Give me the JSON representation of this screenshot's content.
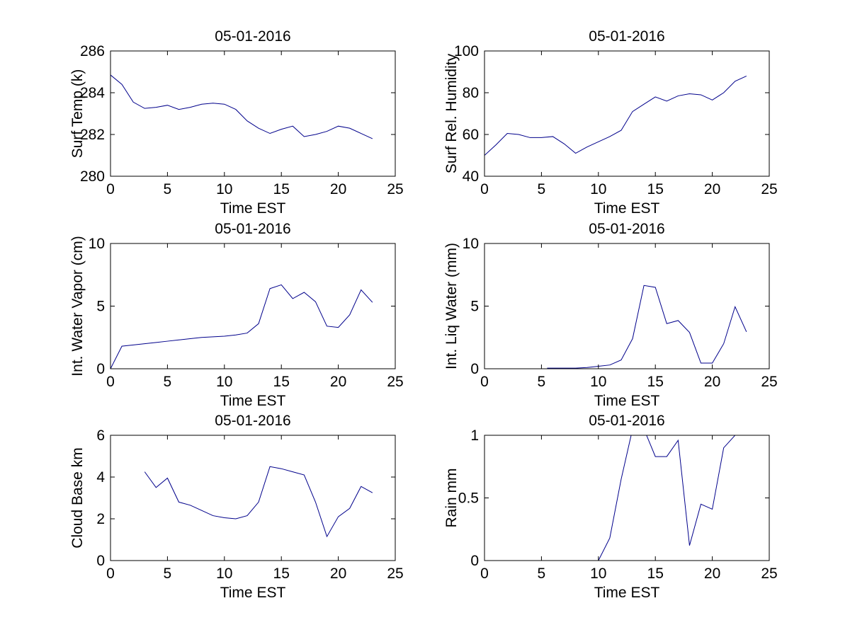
{
  "figure": {
    "background": "#ffffff",
    "axes_color": "#000000",
    "line_color": "#00008B"
  },
  "chart_data": [
    {
      "id": "surf-temp",
      "type": "line",
      "title": "05-01-2016",
      "xlabel": "Time EST",
      "ylabel": "Surf Temp (k)",
      "xlim": [
        0,
        25
      ],
      "ylim": [
        280,
        286
      ],
      "xticks": [
        0,
        5,
        10,
        15,
        20,
        25
      ],
      "yticks": [
        280,
        282,
        284,
        286
      ],
      "grid": false,
      "legend": null,
      "line_color": "#00008B",
      "x": [
        0,
        1,
        2,
        3,
        4,
        5,
        6,
        7,
        8,
        9,
        10,
        11,
        12,
        13,
        14,
        15,
        16,
        17,
        18,
        19,
        20,
        21,
        22,
        23
      ],
      "y": [
        284.85,
        284.4,
        283.55,
        283.25,
        283.3,
        283.4,
        283.2,
        283.3,
        283.45,
        283.5,
        283.45,
        283.2,
        282.65,
        282.3,
        282.05,
        282.25,
        282.4,
        281.9,
        282.0,
        282.15,
        282.4,
        282.3,
        282.05,
        281.8
      ]
    },
    {
      "id": "surf-rel-humidity",
      "type": "line",
      "title": "05-01-2016",
      "xlabel": "Time EST",
      "ylabel": "Surf Rel. Humidity",
      "xlim": [
        0,
        25
      ],
      "ylim": [
        40,
        100
      ],
      "xticks": [
        0,
        5,
        10,
        15,
        20,
        25
      ],
      "yticks": [
        40,
        60,
        80,
        100
      ],
      "grid": false,
      "legend": null,
      "line_color": "#00008B",
      "x": [
        0,
        1,
        2,
        3,
        4,
        5,
        6,
        7,
        8,
        9,
        10,
        11,
        12,
        13,
        14,
        15,
        16,
        17,
        18,
        19,
        20,
        21,
        22,
        23
      ],
      "y": [
        50,
        55,
        60.5,
        60,
        58.5,
        58.5,
        59,
        55.5,
        51,
        54,
        56.5,
        59,
        62,
        71,
        74.5,
        78,
        76,
        78.5,
        79.5,
        79,
        76.5,
        80,
        85.5,
        88
      ]
    },
    {
      "id": "int-water-vapor",
      "type": "line",
      "title": "05-01-2016",
      "xlabel": "Time EST",
      "ylabel": "Int. Water Vapor (cm)",
      "xlim": [
        0,
        25
      ],
      "ylim": [
        0,
        10
      ],
      "xticks": [
        0,
        5,
        10,
        15,
        20,
        25
      ],
      "yticks": [
        0,
        5,
        10
      ],
      "grid": false,
      "legend": null,
      "line_color": "#00008B",
      "x": [
        0,
        1,
        2,
        3,
        4,
        5,
        6,
        7,
        8,
        9,
        10,
        11,
        12,
        13,
        14,
        15,
        16,
        17,
        18,
        19,
        20,
        21,
        22,
        23
      ],
      "y": [
        0,
        1.8,
        1.9,
        2.0,
        2.1,
        2.2,
        2.3,
        2.4,
        2.5,
        2.55,
        2.6,
        2.7,
        2.85,
        3.6,
        6.4,
        6.7,
        5.6,
        6.1,
        5.35,
        3.4,
        3.3,
        4.3,
        6.3,
        5.3
      ]
    },
    {
      "id": "int-liq-water",
      "type": "line",
      "title": "05-01-2016",
      "xlabel": "Time EST",
      "ylabel": "Int. Liq Water (mm)",
      "xlim": [
        0,
        25
      ],
      "ylim": [
        0,
        10
      ],
      "xticks": [
        0,
        5,
        10,
        15,
        20,
        25
      ],
      "yticks": [
        0,
        5,
        10
      ],
      "grid": false,
      "legend": null,
      "line_color": "#00008B",
      "x": [
        5.5,
        6,
        7,
        8,
        9,
        10,
        11,
        12,
        13,
        14,
        15,
        16,
        17,
        18,
        19,
        20,
        21,
        22,
        23
      ],
      "y": [
        0.05,
        0.05,
        0.05,
        0.05,
        0.1,
        0.2,
        0.3,
        0.7,
        2.4,
        6.65,
        6.5,
        3.6,
        3.85,
        2.9,
        0.45,
        0.45,
        2.0,
        4.95,
        2.95
      ]
    },
    {
      "id": "cloud-base",
      "type": "line",
      "title": "05-01-2016",
      "xlabel": "Time EST",
      "ylabel": "Cloud Base km",
      "xlim": [
        0,
        25
      ],
      "ylim": [
        0,
        6
      ],
      "xticks": [
        0,
        5,
        10,
        15,
        20,
        25
      ],
      "yticks": [
        0,
        2,
        4,
        6
      ],
      "grid": false,
      "legend": null,
      "line_color": "#00008B",
      "x": [
        3,
        4,
        5,
        6,
        7,
        8,
        9,
        10,
        11,
        12,
        13,
        14,
        15,
        16,
        17,
        18,
        19,
        20,
        21,
        22,
        23
      ],
      "y": [
        4.25,
        3.5,
        3.95,
        2.8,
        2.65,
        2.4,
        2.15,
        2.05,
        2.0,
        2.15,
        2.8,
        4.5,
        4.4,
        4.25,
        4.1,
        2.8,
        1.15,
        2.1,
        2.5,
        3.55,
        3.25
      ]
    },
    {
      "id": "rain",
      "type": "line",
      "title": "05-01-2016",
      "xlabel": "Time EST",
      "ylabel": "Rain mm",
      "xlim": [
        0,
        25
      ],
      "ylim": [
        0,
        1
      ],
      "xticks": [
        0,
        5,
        10,
        15,
        20,
        25
      ],
      "yticks": [
        0,
        0.5,
        1
      ],
      "grid": false,
      "legend": null,
      "line_color": "#00008B",
      "x": [
        10,
        11,
        12,
        13,
        14,
        15,
        16,
        17,
        18,
        19,
        20,
        21,
        22,
        23
      ],
      "y": [
        0,
        0.18,
        0.65,
        1.05,
        1.05,
        0.83,
        0.83,
        0.96,
        0.12,
        0.45,
        0.41,
        0.9,
        1.0,
        1.15
      ]
    }
  ]
}
